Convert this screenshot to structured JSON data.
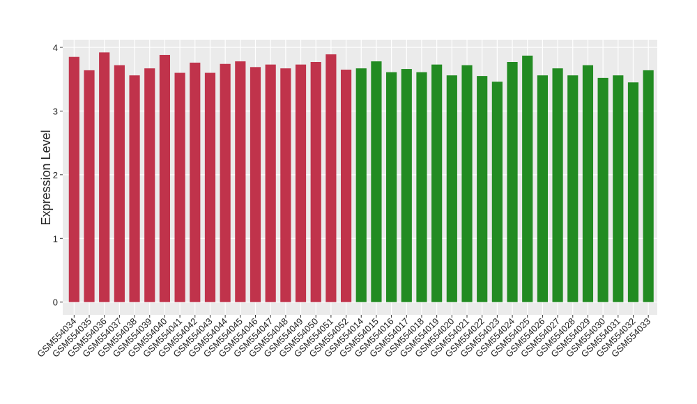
{
  "chart_data": {
    "type": "bar",
    "y_label": "Expression Level",
    "categories": [
      "GSM554034",
      "GSM554035",
      "GSM554036",
      "GSM554037",
      "GSM554038",
      "GSM554039",
      "GSM554040",
      "GSM554041",
      "GSM554042",
      "GSM554043",
      "GSM554044",
      "GSM554045",
      "GSM554046",
      "GSM554047",
      "GSM554048",
      "GSM554049",
      "GSM554050",
      "GSM554051",
      "GSM554052",
      "GSM554014",
      "GSM554015",
      "GSM554016",
      "GSM554017",
      "GSM554018",
      "GSM554019",
      "GSM554020",
      "GSM554021",
      "GSM554022",
      "GSM554023",
      "GSM554024",
      "GSM554025",
      "GSM554026",
      "GSM554027",
      "GSM554028",
      "GSM554029",
      "GSM554030",
      "GSM554031",
      "GSM554032",
      "GSM554033"
    ],
    "values": [
      3.85,
      3.64,
      3.92,
      3.72,
      3.56,
      3.67,
      3.88,
      3.6,
      3.76,
      3.6,
      3.74,
      3.78,
      3.69,
      3.73,
      3.67,
      3.73,
      3.77,
      3.89,
      3.65,
      3.67,
      3.78,
      3.61,
      3.66,
      3.61,
      3.73,
      3.56,
      3.72,
      3.55,
      3.46,
      3.77,
      3.87,
      3.56,
      3.67,
      3.56,
      3.72,
      3.52,
      3.56,
      3.45,
      3.64
    ],
    "colors": [
      "#c0334b",
      "#c0334b",
      "#c0334b",
      "#c0334b",
      "#c0334b",
      "#c0334b",
      "#c0334b",
      "#c0334b",
      "#c0334b",
      "#c0334b",
      "#c0334b",
      "#c0334b",
      "#c0334b",
      "#c0334b",
      "#c0334b",
      "#c0334b",
      "#c0334b",
      "#c0334b",
      "#c0334b",
      "#228b22",
      "#228b22",
      "#228b22",
      "#228b22",
      "#228b22",
      "#228b22",
      "#228b22",
      "#228b22",
      "#228b22",
      "#228b22",
      "#228b22",
      "#228b22",
      "#228b22",
      "#228b22",
      "#228b22",
      "#228b22",
      "#228b22",
      "#228b22",
      "#228b22",
      "#228b22"
    ],
    "ylim": [
      -0.2,
      4.12
    ],
    "yticks": [
      0,
      1,
      2,
      3,
      4
    ],
    "grid": true
  }
}
